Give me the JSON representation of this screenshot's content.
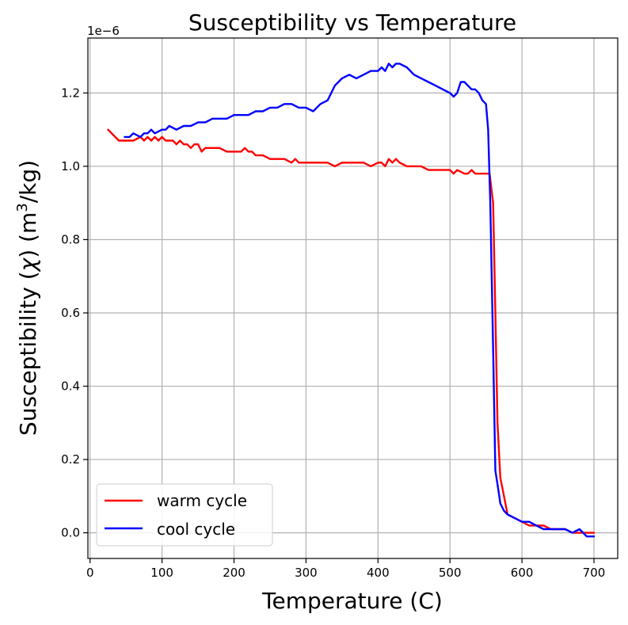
{
  "chart_data": {
    "type": "line",
    "title": "Susceptibility vs Temperature",
    "xlabel": "Temperature (C)",
    "ylabel_main": "Susceptibility (",
    "ylabel_chi": "χ",
    "ylabel_mid": ") (m",
    "ylabel_sup": "3",
    "ylabel_end": "/kg)",
    "y_offset_label": "1e−6",
    "xlim": [
      -3,
      733
    ],
    "ylim": [
      -0.07,
      1.35
    ],
    "x_ticks": [
      0,
      100,
      200,
      300,
      400,
      500,
      600,
      700
    ],
    "x_tick_labels": [
      "0",
      "100",
      "200",
      "300",
      "400",
      "500",
      "600",
      "700"
    ],
    "y_ticks": [
      0.0,
      0.2,
      0.4,
      0.6,
      0.8,
      1.0,
      1.2
    ],
    "y_tick_labels": [
      "0.0",
      "0.2",
      "0.4",
      "0.6",
      "0.8",
      "1.0",
      "1.2"
    ],
    "grid": true,
    "legend_position": "lower-left",
    "series": [
      {
        "name": "warm cycle",
        "color": "#ff0000",
        "x": [
          25,
          30,
          35,
          40,
          45,
          50,
          60,
          70,
          75,
          80,
          85,
          90,
          95,
          100,
          105,
          110,
          115,
          120,
          125,
          130,
          135,
          140,
          145,
          150,
          155,
          160,
          165,
          170,
          180,
          190,
          200,
          210,
          215,
          220,
          225,
          230,
          240,
          250,
          260,
          270,
          280,
          285,
          290,
          300,
          310,
          320,
          330,
          340,
          350,
          360,
          370,
          380,
          390,
          400,
          405,
          410,
          415,
          420,
          425,
          430,
          440,
          450,
          460,
          470,
          480,
          490,
          500,
          505,
          510,
          520,
          525,
          530,
          535,
          540,
          545,
          550,
          555,
          560,
          563,
          566,
          570,
          575,
          580,
          590,
          600,
          610,
          620,
          630,
          640,
          650,
          660,
          670,
          680,
          690,
          700
        ],
        "y": [
          1.1,
          1.09,
          1.08,
          1.07,
          1.07,
          1.07,
          1.07,
          1.08,
          1.07,
          1.08,
          1.07,
          1.08,
          1.07,
          1.08,
          1.07,
          1.07,
          1.07,
          1.06,
          1.07,
          1.06,
          1.06,
          1.05,
          1.06,
          1.06,
          1.04,
          1.05,
          1.05,
          1.05,
          1.05,
          1.04,
          1.04,
          1.04,
          1.05,
          1.04,
          1.04,
          1.03,
          1.03,
          1.02,
          1.02,
          1.02,
          1.01,
          1.02,
          1.01,
          1.01,
          1.01,
          1.01,
          1.01,
          1.0,
          1.01,
          1.01,
          1.01,
          1.01,
          1.0,
          1.01,
          1.01,
          1.0,
          1.02,
          1.01,
          1.02,
          1.01,
          1.0,
          1.0,
          1.0,
          0.99,
          0.99,
          0.99,
          0.99,
          0.98,
          0.99,
          0.98,
          0.98,
          0.99,
          0.98,
          0.98,
          0.98,
          0.98,
          0.98,
          0.9,
          0.6,
          0.3,
          0.15,
          0.1,
          0.05,
          0.04,
          0.03,
          0.02,
          0.02,
          0.02,
          0.01,
          0.01,
          0.01,
          0.0,
          0.0,
          0.0,
          0.0
        ]
      },
      {
        "name": "cool cycle",
        "color": "#0000ff",
        "x": [
          48,
          55,
          60,
          70,
          75,
          80,
          85,
          90,
          100,
          105,
          110,
          120,
          130,
          140,
          150,
          160,
          170,
          180,
          190,
          200,
          210,
          220,
          230,
          240,
          250,
          260,
          270,
          280,
          290,
          300,
          310,
          320,
          330,
          340,
          350,
          360,
          370,
          380,
          390,
          400,
          405,
          410,
          415,
          420,
          425,
          430,
          440,
          450,
          460,
          470,
          480,
          490,
          500,
          505,
          510,
          515,
          520,
          525,
          530,
          535,
          540,
          545,
          550,
          553,
          556,
          560,
          563,
          567,
          570,
          575,
          580,
          590,
          600,
          610,
          620,
          630,
          640,
          650,
          660,
          670,
          680,
          685,
          690,
          700
        ],
        "y": [
          1.08,
          1.08,
          1.09,
          1.08,
          1.09,
          1.09,
          1.1,
          1.09,
          1.1,
          1.1,
          1.11,
          1.1,
          1.11,
          1.11,
          1.12,
          1.12,
          1.13,
          1.13,
          1.13,
          1.14,
          1.14,
          1.14,
          1.15,
          1.15,
          1.16,
          1.16,
          1.17,
          1.17,
          1.16,
          1.16,
          1.15,
          1.17,
          1.18,
          1.22,
          1.24,
          1.25,
          1.24,
          1.25,
          1.26,
          1.26,
          1.27,
          1.26,
          1.28,
          1.27,
          1.28,
          1.28,
          1.27,
          1.25,
          1.24,
          1.23,
          1.22,
          1.21,
          1.2,
          1.19,
          1.2,
          1.23,
          1.23,
          1.22,
          1.21,
          1.21,
          1.2,
          1.18,
          1.17,
          1.1,
          0.9,
          0.5,
          0.17,
          0.12,
          0.08,
          0.06,
          0.05,
          0.04,
          0.03,
          0.03,
          0.02,
          0.01,
          0.01,
          0.01,
          0.01,
          0.0,
          0.01,
          0.0,
          -0.01,
          -0.01
        ]
      }
    ]
  }
}
